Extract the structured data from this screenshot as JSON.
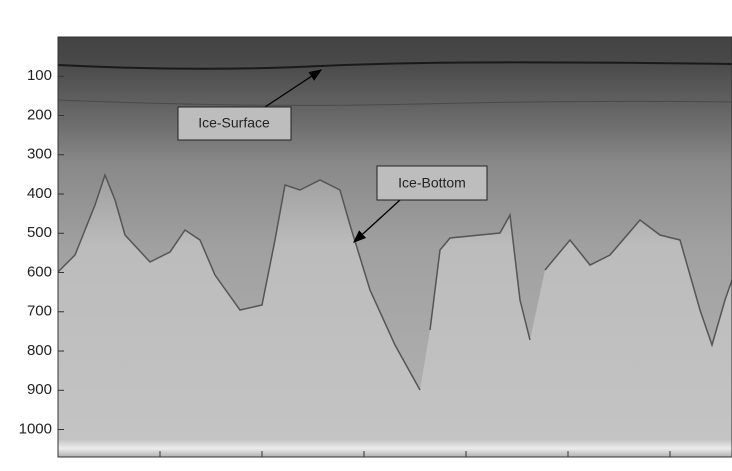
{
  "chart_data": {
    "type": "image",
    "ylim": [
      0,
      1070
    ],
    "y_reversed": true,
    "yticks": [
      100,
      200,
      300,
      400,
      500,
      600,
      700,
      800,
      900,
      1000
    ],
    "annotations": [
      {
        "text": "Ice-Surface"
      },
      {
        "text": "Ice-Bottom"
      }
    ]
  }
}
